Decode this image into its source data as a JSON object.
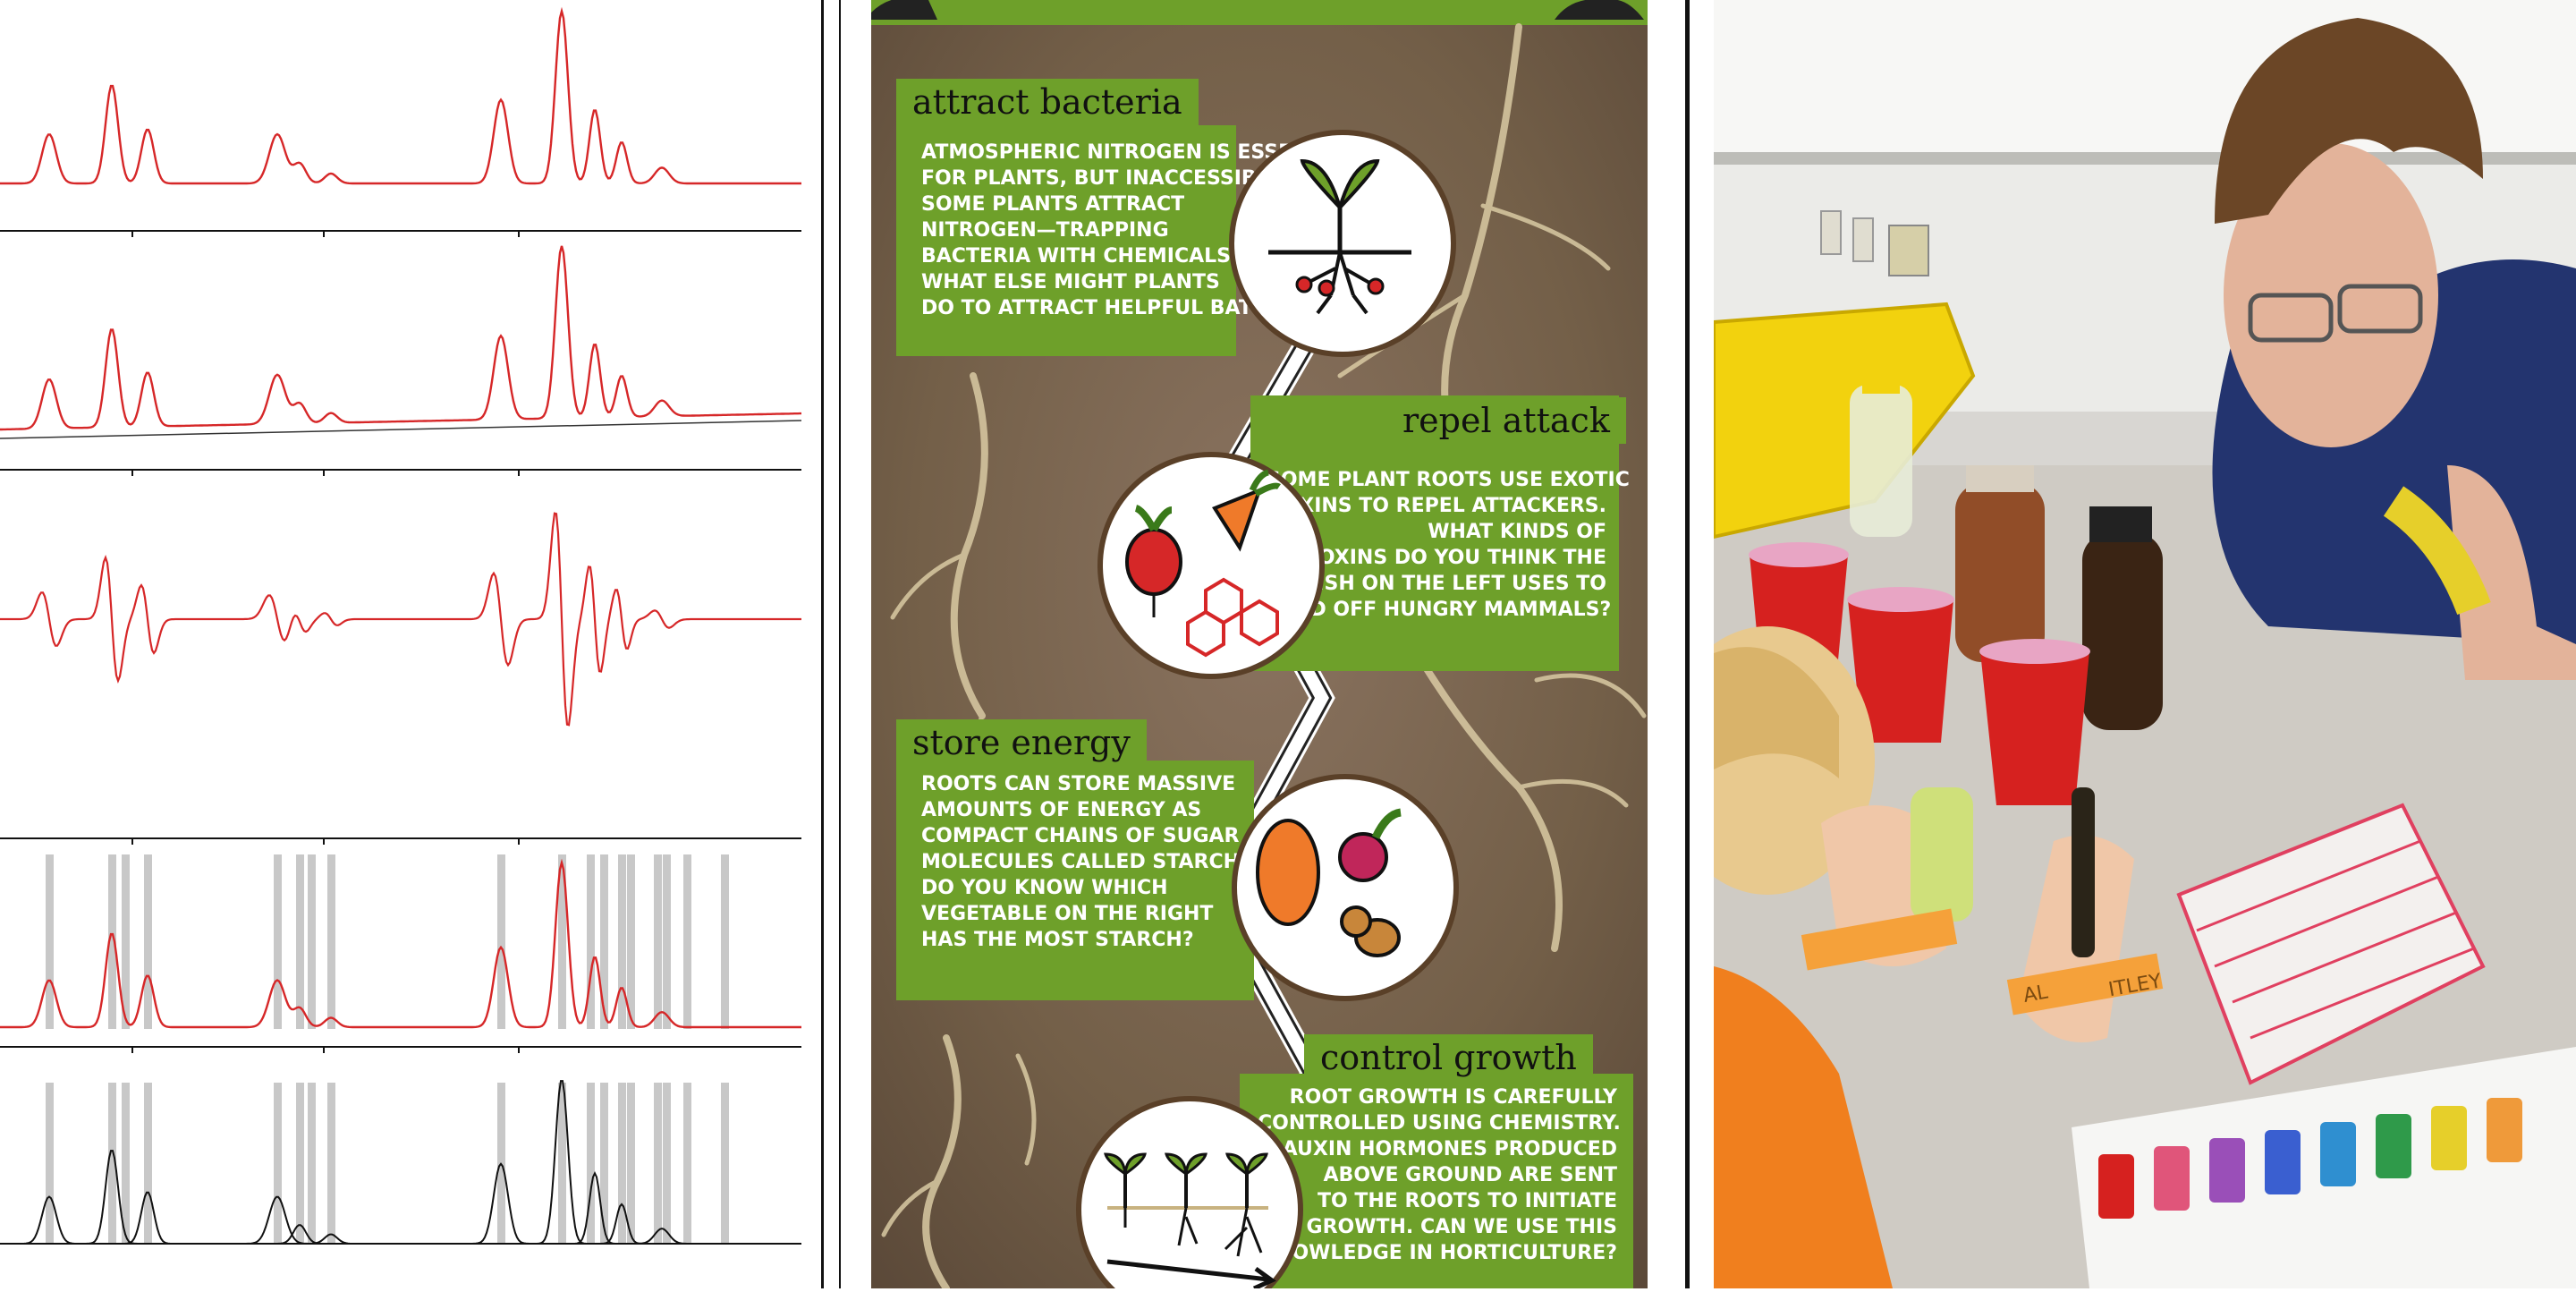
{
  "infographic": {
    "cards": [
      {
        "title": "attract bacteria",
        "lines": [
          "ATMOSPHERIC NITROGEN IS ESSENTIAL",
          "FOR PLANTS, BUT INACCESSIBLE.",
          "SOME PLANTS ATTRACT",
          "NITROGEN—TRAPPING",
          "BACTERIA WITH CHEMICALS.",
          "WHAT ELSE MIGHT PLANTS",
          "DO TO ATTRACT HELPFUL BATERIA?"
        ]
      },
      {
        "title": "repel attack",
        "lines": [
          "SOME PLANT ROOTS USE EXOTIC",
          "TOXINS TO REPEL ATTACKERS.",
          "WHAT KINDS OF",
          "TOXINS DO YOU THINK THE",
          "RADISH ON THE LEFT USES TO",
          "FEND OFF HUNGRY MAMMALS?"
        ]
      },
      {
        "title": "store energy",
        "lines": [
          "ROOTS CAN STORE MASSIVE",
          "AMOUNTS OF ENERGY AS",
          "COMPACT CHAINS OF SUGAR",
          "MOLECULES CALLED STARCH.",
          "DO YOU KNOW WHICH",
          "VEGETABLE ON THE RIGHT",
          "HAS THE MOST STARCH?"
        ]
      },
      {
        "title": "control growth",
        "lines": [
          "ROOT GROWTH IS CAREFULLY",
          "CONTROLLED USING CHEMISTRY.",
          "AUXIN HORMONES PRODUCED",
          "ABOVE GROUND ARE SENT",
          "TO THE ROOTS TO INITIATE",
          "GROWTH. CAN WE USE THIS",
          "KNOWLEDGE IN HORTICULTURE?"
        ]
      }
    ]
  },
  "photo": {
    "visible_labels": [
      "AL",
      "ITLEY"
    ]
  },
  "colors": {
    "card_green": "#6ea02a",
    "background_brown": "#7a6650",
    "spectrum_red": "#d62728",
    "root_beige": "#d9caa3"
  },
  "icons": [
    "sprout-icon",
    "radish-icon",
    "carrot-icon",
    "molecule-icon",
    "sweet-potato-icon",
    "beet-icon",
    "potato-icon",
    "seedlings-icon"
  ]
}
